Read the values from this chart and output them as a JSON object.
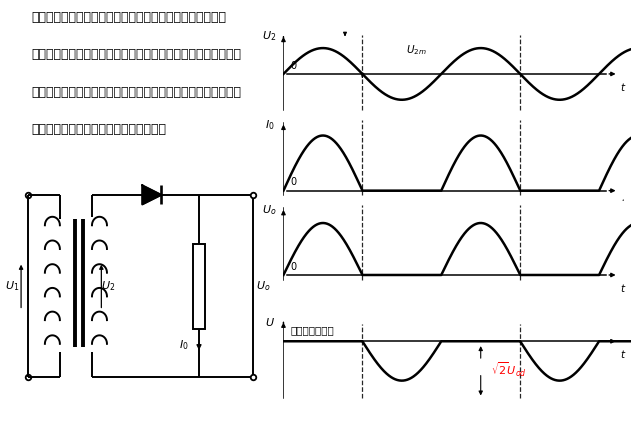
{
  "bg_color": "#ffffff",
  "text_color": "#000000",
  "text_lines": [
    "几乎所有的电子器件和电子电路都需要直流电源供给，常采",
    "用整流电路。整流电路是利用二极管的单向导电的特性，通常有",
    "单相半波整流电路、单相全波整流电路、单相桥式整流电路、三",
    "相桥式整流电路，以及可控整流电路等。"
  ],
  "lw": 1.4,
  "lw_thick": 2.2,
  "diode_label": "（二极管降压）",
  "sqrt2_label": "$\\sqrt{2}U_{od}$",
  "label_U2": "$U_2$",
  "label_I0": "$I_0$",
  "label_Uo": "$U_o$",
  "label_U": "$U$",
  "label_U2m": "$U_{2m}$",
  "label_t": "$t$",
  "label_0": "$0$"
}
